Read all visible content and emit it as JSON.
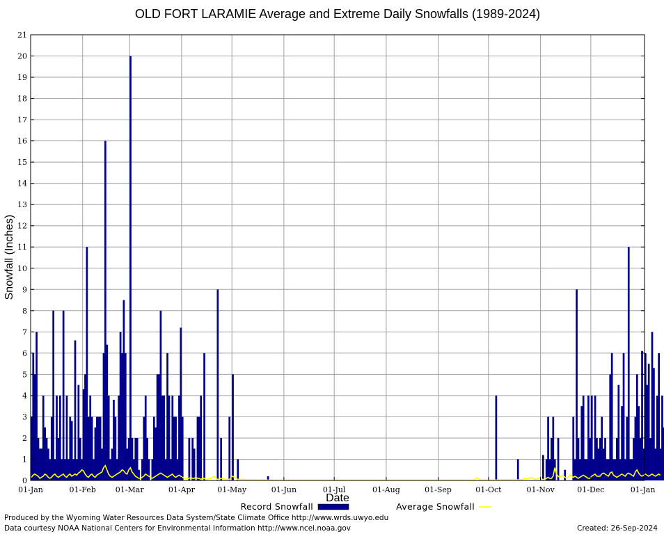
{
  "chart_data": {
    "type": "bar",
    "title": "OLD FORT LARAMIE Average and Extreme Daily Snowfalls (1989-2024)",
    "xlabel": "Date",
    "ylabel": "Snowfall (Inches)",
    "ylim": [
      0,
      21
    ],
    "yticks": [
      "0",
      "1",
      "2",
      "3",
      "4",
      "5",
      "6",
      "7",
      "8",
      "9",
      "10",
      "11",
      "12",
      "13",
      "14",
      "15",
      "16",
      "17",
      "18",
      "19",
      "20",
      "21"
    ],
    "xticks": [
      "01-Jan",
      "01-Feb",
      "01-Mar",
      "01-Apr",
      "01-May",
      "01-Jun",
      "01-Jul",
      "01-Aug",
      "01-Sep",
      "01-Oct",
      "01-Nov",
      "01-Dec",
      "01-Jan"
    ],
    "xtick_days": [
      0,
      31,
      59,
      90,
      120,
      151,
      181,
      212,
      243,
      273,
      304,
      334,
      365
    ],
    "grid": true,
    "legend_position": "bottom",
    "colors": {
      "record": "#00008b",
      "average": "#ffff00",
      "grid": "#a0a0a0"
    },
    "series": [
      {
        "name": "Record Snowfall",
        "style": "bar",
        "values": [
          3,
          6,
          5,
          7,
          2,
          1.5,
          1.5,
          4,
          2.5,
          2,
          1.5,
          1,
          3,
          8,
          1,
          4,
          2,
          4,
          1,
          8,
          1,
          4,
          1,
          3,
          2.8,
          1,
          6.6,
          1,
          4.5,
          2,
          1,
          4.3,
          5,
          11,
          3,
          4,
          3,
          1,
          2.5,
          3,
          3,
          3,
          1.5,
          6,
          16,
          6.4,
          4,
          1,
          1.5,
          3.8,
          3,
          1,
          4,
          7,
          6,
          8.5,
          6,
          1.5,
          2,
          20,
          2,
          1,
          2,
          2,
          0.5,
          0,
          1,
          3,
          4,
          2,
          1,
          0,
          1,
          3,
          2.5,
          5,
          5,
          8,
          4,
          4,
          1,
          6,
          4,
          1,
          4,
          3,
          3,
          1,
          4,
          7.2,
          3,
          0,
          0,
          0,
          2,
          0,
          2,
          1.5,
          0,
          3,
          3,
          4,
          0,
          6,
          0,
          0,
          0,
          0,
          0,
          0,
          0,
          9,
          0,
          2,
          0,
          0,
          0,
          0,
          3,
          0,
          5,
          0,
          0,
          1,
          0,
          0,
          0,
          0,
          0,
          0,
          0,
          0,
          0,
          0,
          0,
          0,
          0,
          0,
          0,
          0,
          0,
          0.2,
          0,
          0,
          0,
          0,
          0,
          0,
          0,
          0,
          0,
          0,
          0,
          0,
          0,
          0,
          0,
          0,
          0,
          0,
          0,
          0,
          0,
          0,
          0,
          0,
          0,
          0,
          0,
          0,
          0,
          0,
          0,
          0,
          0,
          0,
          0,
          0,
          0,
          0,
          0,
          0,
          0,
          0,
          0,
          0,
          0,
          0,
          0,
          0,
          0,
          0,
          0,
          0,
          0,
          0,
          0,
          0,
          0,
          0,
          0,
          0,
          0,
          0,
          0,
          0,
          0,
          0,
          0,
          0,
          0,
          0,
          0,
          0,
          0,
          0,
          0,
          0,
          0,
          0,
          0,
          0,
          0,
          0,
          0,
          0,
          0,
          0,
          0,
          0,
          0,
          0,
          0,
          0,
          0,
          0,
          0,
          0,
          0,
          0,
          0,
          0,
          0,
          0,
          0,
          0,
          0,
          0,
          0,
          0,
          0,
          0,
          0,
          0,
          0,
          0,
          0,
          0,
          0,
          0,
          0,
          0,
          0,
          0,
          0,
          0,
          0,
          0,
          0,
          0,
          0,
          0,
          0,
          0,
          0,
          0,
          0,
          4,
          0,
          0,
          0,
          0,
          0,
          0,
          0,
          0,
          0,
          0,
          0,
          0,
          1,
          0,
          0,
          0,
          0,
          0,
          0,
          0,
          0,
          0,
          0,
          0,
          0,
          0,
          0,
          1.2,
          0,
          1,
          3,
          1,
          2,
          3,
          1,
          0,
          2,
          0,
          0,
          0,
          0.5,
          0,
          0,
          0,
          0,
          3,
          1,
          9,
          2,
          1,
          3.5,
          4,
          1,
          1,
          4,
          2,
          4,
          1,
          4,
          2,
          1.5,
          2,
          3,
          1.5,
          2,
          1,
          1,
          5,
          6,
          1,
          1,
          2,
          4.5,
          1,
          3.5,
          6,
          1,
          3,
          11,
          1,
          1,
          2,
          3,
          5,
          3.5,
          2,
          6.1,
          1.5,
          6,
          4.5,
          5.5,
          2,
          7,
          5.3,
          1.5,
          4,
          6,
          1.5,
          4,
          2.5,
          6,
          1.5,
          6,
          5.6,
          3.3,
          4
        ]
      },
      {
        "name": "Average Snowfall",
        "style": "line",
        "values": [
          0.15,
          0.25,
          0.3,
          0.25,
          0.2,
          0.1,
          0.15,
          0.2,
          0.3,
          0.25,
          0.15,
          0.1,
          0.15,
          0.25,
          0.3,
          0.2,
          0.15,
          0.2,
          0.25,
          0.3,
          0.2,
          0.15,
          0.25,
          0.3,
          0.2,
          0.25,
          0.3,
          0.25,
          0.35,
          0.4,
          0.5,
          0.45,
          0.3,
          0.2,
          0.15,
          0.25,
          0.3,
          0.2,
          0.15,
          0.25,
          0.3,
          0.35,
          0.4,
          0.6,
          0.7,
          0.5,
          0.3,
          0.2,
          0.15,
          0.2,
          0.25,
          0.3,
          0.35,
          0.4,
          0.5,
          0.45,
          0.35,
          0.3,
          0.5,
          0.6,
          0.4,
          0.3,
          0.2,
          0.15,
          0.1,
          0.1,
          0.15,
          0.2,
          0.3,
          0.25,
          0.2,
          0.15,
          0.1,
          0.15,
          0.2,
          0.25,
          0.3,
          0.35,
          0.3,
          0.25,
          0.2,
          0.15,
          0.2,
          0.25,
          0.3,
          0.2,
          0.15,
          0.2,
          0.25,
          0.2,
          0.15,
          0.1,
          0.1,
          0.1,
          0.1,
          0.15,
          0.1,
          0.1,
          0.15,
          0.1,
          0.1,
          0.05,
          0.1,
          0.1,
          0.05,
          0.05,
          0.1,
          0.1,
          0.15,
          0.2,
          0.1,
          0.05,
          0.05,
          0.1,
          0.1,
          0.05,
          0.05,
          0.05,
          0.05,
          0.1,
          0.2,
          0.15,
          0.1,
          0.05,
          0.05,
          0.05,
          0.05,
          0.05,
          0.03,
          0.03,
          0.03,
          0.03,
          0.03,
          0.03,
          0.03,
          0.03,
          0.03,
          0.03,
          0.03,
          0.03,
          0.02,
          0.02,
          0.02,
          0.02,
          0.02,
          0.02,
          0.02,
          0.02,
          0.02,
          0.02,
          0.02,
          0.02,
          0.02,
          0.02,
          0.02,
          0.02,
          0.02,
          0.02,
          0.02,
          0.02,
          0.02,
          0.02,
          0.02,
          0.02,
          0.02,
          0.02,
          0.02,
          0.02,
          0.02,
          0.02,
          0.02,
          0.02,
          0.02,
          0.02,
          0.02,
          0.02,
          0.02,
          0.02,
          0.02,
          0.02,
          0.02,
          0.02,
          0.02,
          0.02,
          0.02,
          0.02,
          0.02,
          0.02,
          0.02,
          0.02,
          0.02,
          0.02,
          0.02,
          0.02,
          0.02,
          0.02,
          0.02,
          0.02,
          0.02,
          0.02,
          0.02,
          0.02,
          0.02,
          0.02,
          0.02,
          0.02,
          0.02,
          0.02,
          0.02,
          0.02,
          0.02,
          0.02,
          0.02,
          0.02,
          0.02,
          0.02,
          0.02,
          0.02,
          0.02,
          0.02,
          0.02,
          0.02,
          0.02,
          0.02,
          0.02,
          0.02,
          0.02,
          0.02,
          0.02,
          0.02,
          0.02,
          0.02,
          0.02,
          0.02,
          0.02,
          0.02,
          0.02,
          0.02,
          0.02,
          0.02,
          0.02,
          0.02,
          0.02,
          0.02,
          0.02,
          0.02,
          0.02,
          0.02,
          0.02,
          0.02,
          0.02,
          0.02,
          0.02,
          0.02,
          0.02,
          0.02,
          0.02,
          0.02,
          0.02,
          0.02,
          0.02,
          0.02,
          0.02,
          0.02,
          0.02,
          0.1,
          0.12,
          0.05,
          0.02,
          0.02,
          0.02,
          0.02,
          0.02,
          0.02,
          0.02,
          0.02,
          0.02,
          0.02,
          0.03,
          0.03,
          0.03,
          0.03,
          0.03,
          0.03,
          0.03,
          0.03,
          0.03,
          0.03,
          0.03,
          0.03,
          0.03,
          0.03,
          0.03,
          0.05,
          0.1,
          0.05,
          0.1,
          0.1,
          0.15,
          0.1,
          0.05,
          0.05,
          0.1,
          0.1,
          0.05,
          0.05,
          0.05,
          0.1,
          0.15,
          0.1,
          0.1,
          0.2,
          0.6,
          0.3,
          0.2,
          0.15,
          0.2,
          0.25,
          0.15,
          0.1,
          0.15,
          0.25,
          0.2,
          0.15,
          0.2,
          0.15,
          0.1,
          0.15,
          0.2,
          0.25,
          0.2,
          0.15,
          0.1,
          0.1,
          0.2,
          0.25,
          0.3,
          0.2,
          0.2,
          0.2,
          0.3,
          0.35,
          0.3,
          0.25,
          0.2,
          0.35,
          0.4,
          0.25,
          0.2,
          0.15,
          0.2,
          0.25,
          0.3,
          0.25,
          0.2,
          0.3,
          0.35,
          0.3,
          0.25,
          0.2,
          0.4,
          0.5,
          0.35,
          0.25,
          0.2,
          0.25,
          0.3,
          0.25,
          0.2,
          0.25,
          0.3,
          0.25,
          0.2,
          0.25,
          0.3,
          0.25
        ]
      }
    ]
  },
  "footer": {
    "line1": "Produced by the Wyoming Water Resources Data System/State Climate Office http://www.wrds.uwyo.edu",
    "line2": "Data courtesy NOAA National Centers for Environmental Information http://www.ncei.noaa.gov",
    "created": "Created:  26-Sep-2024"
  }
}
